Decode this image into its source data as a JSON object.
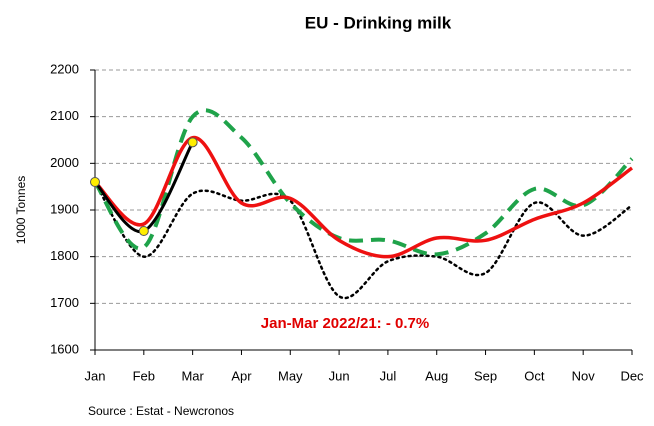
{
  "chart_data": {
    "type": "line",
    "title": "EU - Drinking milk",
    "y_label": "1000 Tonnes",
    "annotation": "Jan-Mar 2022/21: - 0.7%",
    "annotation_color": "#e00000",
    "source": "Source : Estat - Newcronos",
    "categories": [
      "Jan",
      "Feb",
      "Mar",
      "Apr",
      "May",
      "Jun",
      "Jul",
      "Aug",
      "Sep",
      "Oct",
      "Nov",
      "Dec"
    ],
    "ylim": [
      1600,
      2200
    ],
    "yticks": [
      1600,
      1700,
      1800,
      1900,
      2000,
      2100,
      2200
    ],
    "grid": true,
    "series": [
      {
        "color": "#000000",
        "style": "dotted",
        "width": 2.5,
        "values": [
          1960,
          1800,
          1935,
          1920,
          1920,
          1715,
          1790,
          1800,
          1765,
          1915,
          1845,
          1910
        ]
      },
      {
        "color": "#1fa34a",
        "style": "dashed",
        "width": 4,
        "values": [
          1960,
          1820,
          2100,
          2055,
          1915,
          1840,
          1835,
          1805,
          1850,
          1945,
          1910,
          2010
        ]
      },
      {
        "color": "#ee1111",
        "style": "solid",
        "width": 3.5,
        "values": [
          1960,
          1870,
          2055,
          1915,
          1925,
          1835,
          1800,
          1840,
          1835,
          1880,
          1915,
          1990
        ]
      },
      {
        "color": "#000000",
        "style": "solid",
        "width": 3,
        "marker_color": "#ffee00",
        "values": [
          1960,
          1855,
          2045,
          null,
          null,
          null,
          null,
          null,
          null,
          null,
          null,
          null
        ]
      }
    ]
  }
}
